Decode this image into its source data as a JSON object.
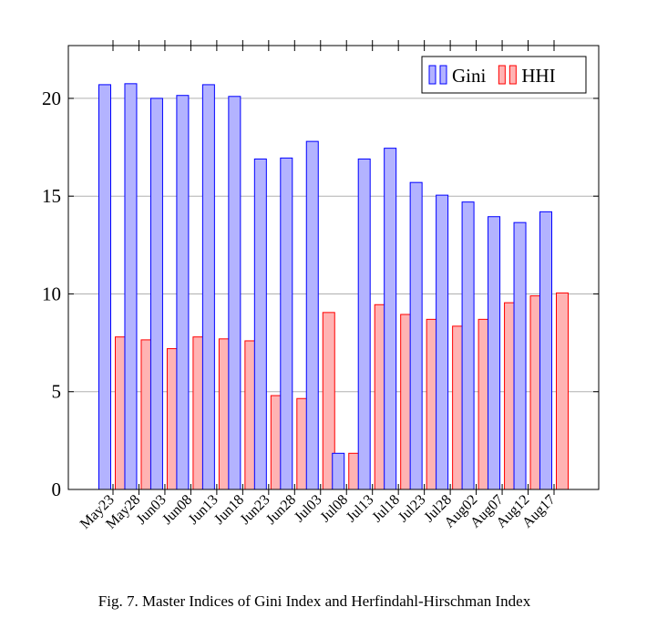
{
  "chart_data": {
    "type": "bar",
    "caption": "Fig. 7.  Master Indices of Gini Index and Herfindahl-Hirschman Index",
    "categories": [
      "May23",
      "May28",
      "Jun03",
      "Jun08",
      "Jun13",
      "Jun18",
      "Jun23",
      "Jun28",
      "Jul03",
      "Jul08",
      "Jul13",
      "Jul18",
      "Jul23",
      "Jul28",
      "Aug02",
      "Aug07",
      "Aug12",
      "Aug17"
    ],
    "series": [
      {
        "name": "Gini",
        "color": "#b3b3ff",
        "edgecolor": "#0000ff",
        "values": [
          20.7,
          20.75,
          20.0,
          20.15,
          20.7,
          20.1,
          16.9,
          16.95,
          17.8,
          1.85,
          16.9,
          17.45,
          15.7,
          15.05,
          14.7,
          13.95,
          13.65,
          14.2
        ]
      },
      {
        "name": "HHI",
        "color": "#ffb3b3",
        "edgecolor": "#ff0000",
        "values": [
          7.8,
          7.65,
          7.2,
          7.8,
          7.7,
          7.6,
          4.8,
          4.65,
          9.05,
          1.85,
          9.45,
          8.95,
          8.7,
          8.35,
          8.7,
          9.55,
          9.9,
          10.05
        ]
      }
    ],
    "ylim": [
      0,
      22.7
    ],
    "yticks": [
      0,
      5,
      10,
      15,
      20
    ],
    "grid": true,
    "legend": "top-right"
  }
}
